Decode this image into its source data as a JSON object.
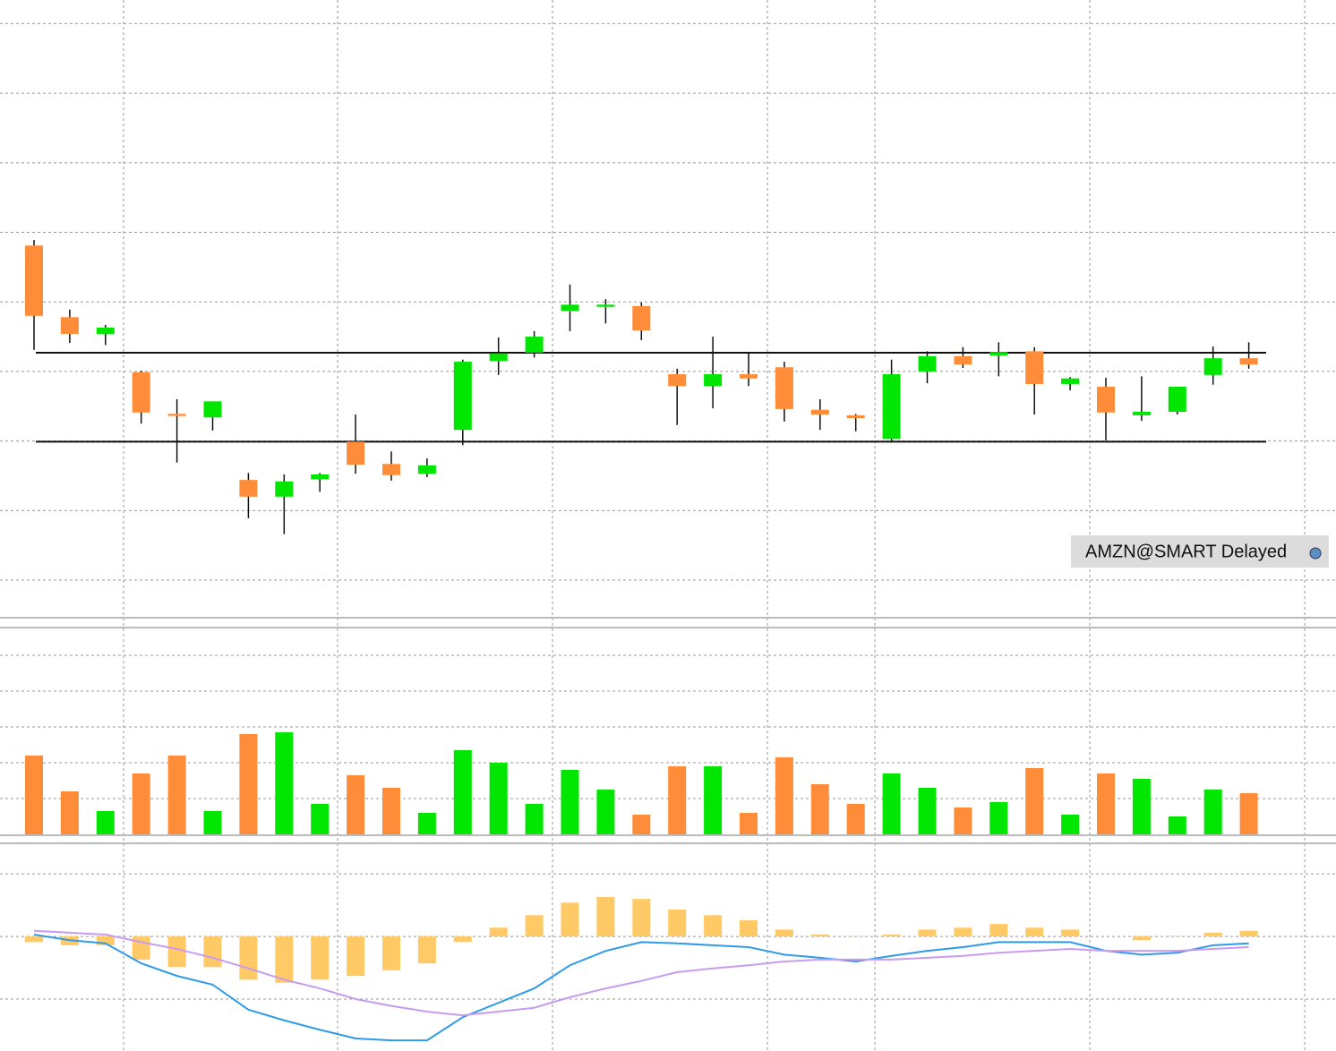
{
  "chart_data": [
    {
      "type": "candlestick",
      "annotation": "AMZN@SMART Delayed",
      "up_color": "#00e600",
      "down_color": "#ff8c38",
      "ylim": [
        -0.54,
        8.34
      ],
      "yticks": [
        0,
        1,
        2,
        3,
        4,
        5,
        6,
        7,
        8
      ],
      "grid": true,
      "hlines": [
        3.27,
        1.99
      ],
      "open": [
        4.81,
        3.78,
        3.54,
        2.99,
        2.39,
        2.34,
        1.44,
        1.2,
        1.45,
        1.99,
        1.67,
        1.53,
        2.16,
        3.15,
        3.27,
        3.87,
        3.93,
        3.94,
        2.96,
        2.79,
        2.96,
        3.06,
        2.45,
        2.37,
        2.03,
        3.0,
        3.22,
        3.23,
        3.29,
        2.82,
        2.78,
        2.37,
        2.42,
        2.95,
        3.19
      ],
      "high": [
        4.89,
        3.89,
        3.67,
        3.01,
        2.6,
        2.57,
        1.54,
        1.52,
        1.54,
        2.38,
        1.85,
        1.75,
        3.17,
        3.49,
        3.58,
        4.25,
        4.04,
        3.99,
        3.04,
        3.5,
        3.26,
        3.14,
        2.6,
        2.39,
        3.17,
        3.29,
        3.35,
        3.42,
        3.35,
        2.92,
        2.91,
        2.93,
        2.78,
        3.36,
        3.42
      ],
      "low": [
        3.31,
        3.41,
        3.38,
        2.25,
        1.69,
        2.15,
        0.89,
        0.66,
        1.27,
        1.53,
        1.43,
        1.48,
        1.94,
        2.95,
        3.2,
        3.58,
        3.69,
        3.45,
        2.23,
        2.47,
        2.79,
        2.28,
        2.16,
        2.14,
        1.98,
        2.83,
        3.05,
        2.93,
        2.38,
        2.73,
        2.01,
        2.29,
        2.38,
        2.81,
        3.04
      ],
      "close": [
        3.8,
        3.54,
        3.63,
        2.41,
        2.36,
        2.57,
        1.2,
        1.42,
        1.52,
        1.66,
        1.51,
        1.65,
        3.14,
        3.26,
        3.5,
        3.96,
        3.96,
        3.59,
        2.79,
        2.96,
        2.9,
        2.46,
        2.38,
        2.33,
        2.96,
        3.22,
        3.1,
        3.28,
        2.82,
        2.9,
        2.41,
        2.42,
        2.78,
        3.19,
        3.1
      ]
    },
    {
      "type": "volume",
      "ylim": [
        0,
        5.75
      ],
      "yticks": [
        1,
        2,
        3,
        4,
        5
      ],
      "grid": true,
      "values": [
        2.2,
        1.2,
        0.65,
        1.7,
        2.2,
        0.65,
        2.8,
        2.85,
        0.85,
        1.65,
        1.3,
        0.6,
        2.35,
        2.0,
        0.85,
        1.8,
        1.25,
        0.55,
        1.9,
        1.9,
        0.6,
        2.15,
        1.4,
        0.85,
        1.7,
        1.3,
        0.75,
        0.9,
        1.85,
        0.55,
        1.7,
        1.55,
        0.5,
        1.25,
        1.15
      ]
    },
    {
      "type": "macd",
      "ylim": [
        -1.83,
        1.46
      ],
      "yticks": [
        -1,
        0,
        1
      ],
      "grid": true,
      "histogram_color": "#ffc966",
      "histogram": [
        -0.09,
        -0.14,
        -0.14,
        -0.37,
        -0.49,
        -0.49,
        -0.69,
        -0.74,
        -0.69,
        -0.63,
        -0.54,
        -0.43,
        -0.09,
        0.14,
        0.34,
        0.54,
        0.63,
        0.6,
        0.43,
        0.34,
        0.26,
        0.11,
        0.03,
        0.01,
        0.03,
        0.11,
        0.14,
        0.2,
        0.14,
        0.11,
        0.0,
        -0.06,
        0.01,
        0.06,
        0.09
      ],
      "series": [
        {
          "color": "#2f9be8",
          "values": [
            0.03,
            -0.06,
            -0.11,
            -0.43,
            -0.63,
            -0.77,
            -1.17,
            -1.34,
            -1.49,
            -1.63,
            -1.66,
            -1.66,
            -1.29,
            -1.06,
            -0.83,
            -0.46,
            -0.23,
            -0.09,
            -0.11,
            -0.14,
            -0.17,
            -0.29,
            -0.34,
            -0.4,
            -0.31,
            -0.23,
            -0.17,
            -0.09,
            -0.09,
            -0.09,
            -0.23,
            -0.29,
            -0.26,
            -0.14,
            -0.11
          ]
        },
        {
          "color": "#c79bf0",
          "values": [
            0.09,
            0.06,
            0.03,
            -0.09,
            -0.2,
            -0.34,
            -0.51,
            -0.69,
            -0.83,
            -1.0,
            -1.11,
            -1.2,
            -1.26,
            -1.2,
            -1.14,
            -0.97,
            -0.83,
            -0.71,
            -0.57,
            -0.51,
            -0.46,
            -0.4,
            -0.37,
            -0.37,
            -0.37,
            -0.34,
            -0.31,
            -0.26,
            -0.23,
            -0.2,
            -0.23,
            -0.23,
            -0.23,
            -0.2,
            -0.17
          ]
        }
      ]
    }
  ]
}
